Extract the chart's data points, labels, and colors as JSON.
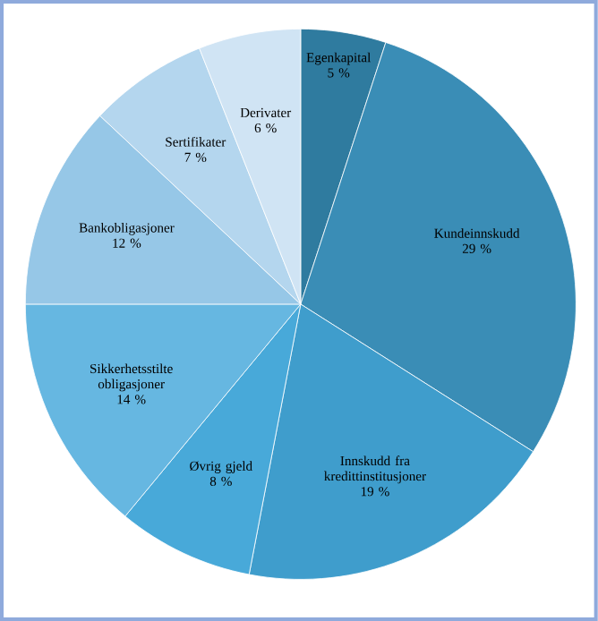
{
  "chart_data": {
    "type": "pie",
    "categories": [
      "Egenkapital",
      "Kundeinnskudd",
      "Innskudd fra kredittinstitusjoner",
      "Øvrig gjeld",
      "Sikkerhetsstilte obligasjoner",
      "Bankobligasjoner",
      "Sertifikater",
      "Derivater"
    ],
    "values": [
      5,
      29,
      19,
      8,
      14,
      12,
      7,
      6
    ],
    "value_labels": [
      "5 %",
      "29 %",
      "19 %",
      "8 %",
      "14 %",
      "12 %",
      "7 %",
      "6 %"
    ],
    "colors": [
      "#2f7b9f",
      "#3a8db6",
      "#3f9dcc",
      "#48a9d9",
      "#66b7e1",
      "#96c7e7",
      "#b4d6ee",
      "#d0e4f4"
    ]
  }
}
